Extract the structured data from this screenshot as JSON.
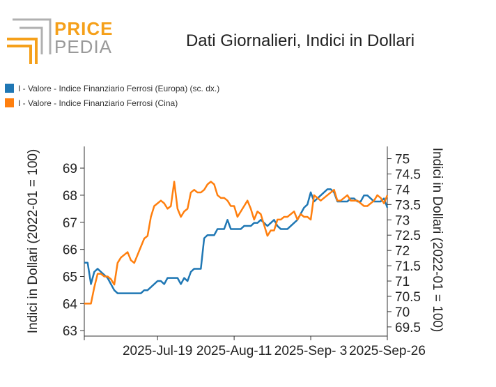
{
  "brand": {
    "line1": "PRICE",
    "line2": "PEDIA",
    "colors": {
      "accent": "#f5a01a",
      "gray": "#9a9a9a"
    }
  },
  "chart_data": {
    "type": "line",
    "title": "Dati Giornalieri, Indici in Dollari",
    "ylabel_left": "Indici in Dollari (2022-01 = 100)",
    "ylabel_right": "Indici in Dollari (2022-01 = 100)",
    "x_ticks": [
      "2025-Jul-19",
      "2025-Aug-11",
      "2025-Sep- 3",
      "2025-Sep-26"
    ],
    "ylim_left": [
      62.8,
      69.8
    ],
    "yticks_left": [
      "63",
      "64",
      "65",
      "66",
      "67",
      "68",
      "69"
    ],
    "ylim_right": [
      69.2,
      75.4
    ],
    "yticks_right": [
      "69.5",
      "70",
      "70.5",
      "71",
      "71.5",
      "72",
      "72.5",
      "73",
      "73.5",
      "74",
      "74.5",
      "75"
    ],
    "xlim": [
      "2025-Jun-27",
      "2025-Sep-26"
    ],
    "grid": false,
    "legend_position": "top-left",
    "series": [
      {
        "name": "I - Valore - Indice Finanziario Ferrosi (Europa) (sc. dx.)",
        "color": "#1f77b4",
        "axis": "right",
        "x": [
          "2025-06-27",
          "2025-06-28",
          "2025-06-29",
          "2025-06-30",
          "2025-07-01",
          "2025-07-02",
          "2025-07-03",
          "2025-07-04",
          "2025-07-05",
          "2025-07-06",
          "2025-07-07",
          "2025-07-08",
          "2025-07-09",
          "2025-07-10",
          "2025-07-11",
          "2025-07-12",
          "2025-07-13",
          "2025-07-14",
          "2025-07-15",
          "2025-07-16",
          "2025-07-17",
          "2025-07-18",
          "2025-07-19",
          "2025-07-20",
          "2025-07-21",
          "2025-07-22",
          "2025-07-23",
          "2025-07-24",
          "2025-07-25",
          "2025-07-26",
          "2025-07-27",
          "2025-07-28",
          "2025-07-29",
          "2025-07-30",
          "2025-07-31",
          "2025-08-01",
          "2025-08-02",
          "2025-08-03",
          "2025-08-04",
          "2025-08-05",
          "2025-08-06",
          "2025-08-07",
          "2025-08-08",
          "2025-08-09",
          "2025-08-10",
          "2025-08-11",
          "2025-08-12",
          "2025-08-13",
          "2025-08-14",
          "2025-08-15",
          "2025-08-16",
          "2025-08-17",
          "2025-08-18",
          "2025-08-19",
          "2025-08-20",
          "2025-08-21",
          "2025-08-22",
          "2025-08-23",
          "2025-08-24",
          "2025-08-25",
          "2025-08-26",
          "2025-08-27",
          "2025-08-28",
          "2025-08-29",
          "2025-08-30",
          "2025-08-31",
          "2025-09-01",
          "2025-09-02",
          "2025-09-03",
          "2025-09-04",
          "2025-09-05",
          "2025-09-06",
          "2025-09-07",
          "2025-09-08",
          "2025-09-09",
          "2025-09-10",
          "2025-09-11",
          "2025-09-12",
          "2025-09-13",
          "2025-09-14",
          "2025-09-15",
          "2025-09-16",
          "2025-09-17",
          "2025-09-18",
          "2025-09-19",
          "2025-09-20",
          "2025-09-21",
          "2025-09-22",
          "2025-09-23",
          "2025-09-24",
          "2025-09-25",
          "2025-09-26"
        ],
        "values": [
          71.6,
          71.6,
          70.9,
          71.3,
          71.4,
          71.3,
          71.2,
          71.1,
          70.9,
          70.7,
          70.6,
          70.6,
          70.6,
          70.6,
          70.6,
          70.6,
          70.6,
          70.6,
          70.7,
          70.7,
          70.8,
          70.9,
          71.0,
          71.0,
          70.9,
          71.1,
          71.1,
          71.1,
          71.1,
          70.9,
          71.1,
          71.0,
          71.3,
          71.4,
          71.4,
          71.4,
          72.4,
          72.5,
          72.5,
          72.5,
          72.7,
          72.7,
          72.7,
          73.0,
          72.7,
          72.7,
          72.7,
          72.7,
          72.8,
          72.8,
          72.8,
          72.9,
          72.9,
          73.0,
          72.9,
          72.8,
          72.9,
          73.0,
          72.8,
          72.7,
          72.7,
          72.7,
          72.8,
          72.9,
          73.0,
          73.2,
          73.4,
          73.5,
          73.9,
          73.6,
          73.7,
          73.8,
          73.9,
          74.0,
          74.0,
          73.9,
          73.6,
          73.6,
          73.6,
          73.6,
          73.7,
          73.7,
          73.6,
          73.6,
          73.8,
          73.8,
          73.7,
          73.6,
          73.6,
          73.6,
          73.7,
          73.4
        ]
      },
      {
        "name": "I - Valore - Indice Finanziario Ferrosi (Cina)",
        "color": "#ff7f0e",
        "axis": "left",
        "x": [
          "2025-06-27",
          "2025-06-28",
          "2025-06-29",
          "2025-06-30",
          "2025-07-01",
          "2025-07-02",
          "2025-07-03",
          "2025-07-04",
          "2025-07-05",
          "2025-07-06",
          "2025-07-07",
          "2025-07-08",
          "2025-07-09",
          "2025-07-10",
          "2025-07-11",
          "2025-07-12",
          "2025-07-13",
          "2025-07-14",
          "2025-07-15",
          "2025-07-16",
          "2025-07-17",
          "2025-07-18",
          "2025-07-19",
          "2025-07-20",
          "2025-07-21",
          "2025-07-22",
          "2025-07-23",
          "2025-07-24",
          "2025-07-25",
          "2025-07-26",
          "2025-07-27",
          "2025-07-28",
          "2025-07-29",
          "2025-07-30",
          "2025-07-31",
          "2025-08-01",
          "2025-08-02",
          "2025-08-03",
          "2025-08-04",
          "2025-08-05",
          "2025-08-06",
          "2025-08-07",
          "2025-08-08",
          "2025-08-09",
          "2025-08-10",
          "2025-08-11",
          "2025-08-12",
          "2025-08-13",
          "2025-08-14",
          "2025-08-15",
          "2025-08-16",
          "2025-08-17",
          "2025-08-18",
          "2025-08-19",
          "2025-08-20",
          "2025-08-21",
          "2025-08-22",
          "2025-08-23",
          "2025-08-24",
          "2025-08-25",
          "2025-08-26",
          "2025-08-27",
          "2025-08-28",
          "2025-08-29",
          "2025-08-30",
          "2025-08-31",
          "2025-09-01",
          "2025-09-02",
          "2025-09-03",
          "2025-09-04",
          "2025-09-05",
          "2025-09-06",
          "2025-09-07",
          "2025-09-08",
          "2025-09-09",
          "2025-09-10",
          "2025-09-11",
          "2025-09-12",
          "2025-09-13",
          "2025-09-14",
          "2025-09-15",
          "2025-09-16",
          "2025-09-17",
          "2025-09-18",
          "2025-09-19",
          "2025-09-20",
          "2025-09-21",
          "2025-09-22",
          "2025-09-23",
          "2025-09-24",
          "2025-09-25",
          "2025-09-26"
        ],
        "values": [
          64.0,
          64.0,
          64.0,
          64.6,
          65.1,
          65.1,
          65.0,
          65.0,
          64.9,
          64.7,
          65.5,
          65.7,
          65.8,
          65.9,
          65.6,
          65.5,
          65.8,
          66.1,
          66.4,
          66.5,
          67.2,
          67.6,
          67.7,
          67.8,
          67.7,
          67.5,
          67.6,
          68.5,
          67.5,
          67.2,
          67.4,
          67.5,
          68.1,
          68.2,
          68.1,
          68.1,
          68.2,
          68.4,
          68.5,
          68.4,
          68.0,
          67.9,
          67.9,
          67.8,
          67.6,
          67.6,
          67.2,
          67.4,
          67.6,
          67.8,
          67.5,
          67.1,
          67.4,
          67.3,
          66.9,
          66.5,
          66.7,
          66.7,
          67.1,
          67.1,
          67.2,
          67.2,
          67.3,
          67.4,
          67.1,
          67.3,
          67.2,
          67.2,
          67.1,
          68.0,
          67.9,
          67.8,
          67.9,
          68.0,
          68.1,
          68.2,
          67.8,
          67.8,
          67.9,
          68.0,
          67.8,
          67.8,
          67.8,
          67.7,
          67.6,
          67.6,
          67.7,
          67.8,
          68.0,
          67.9,
          67.7,
          68.0
        ]
      }
    ]
  }
}
